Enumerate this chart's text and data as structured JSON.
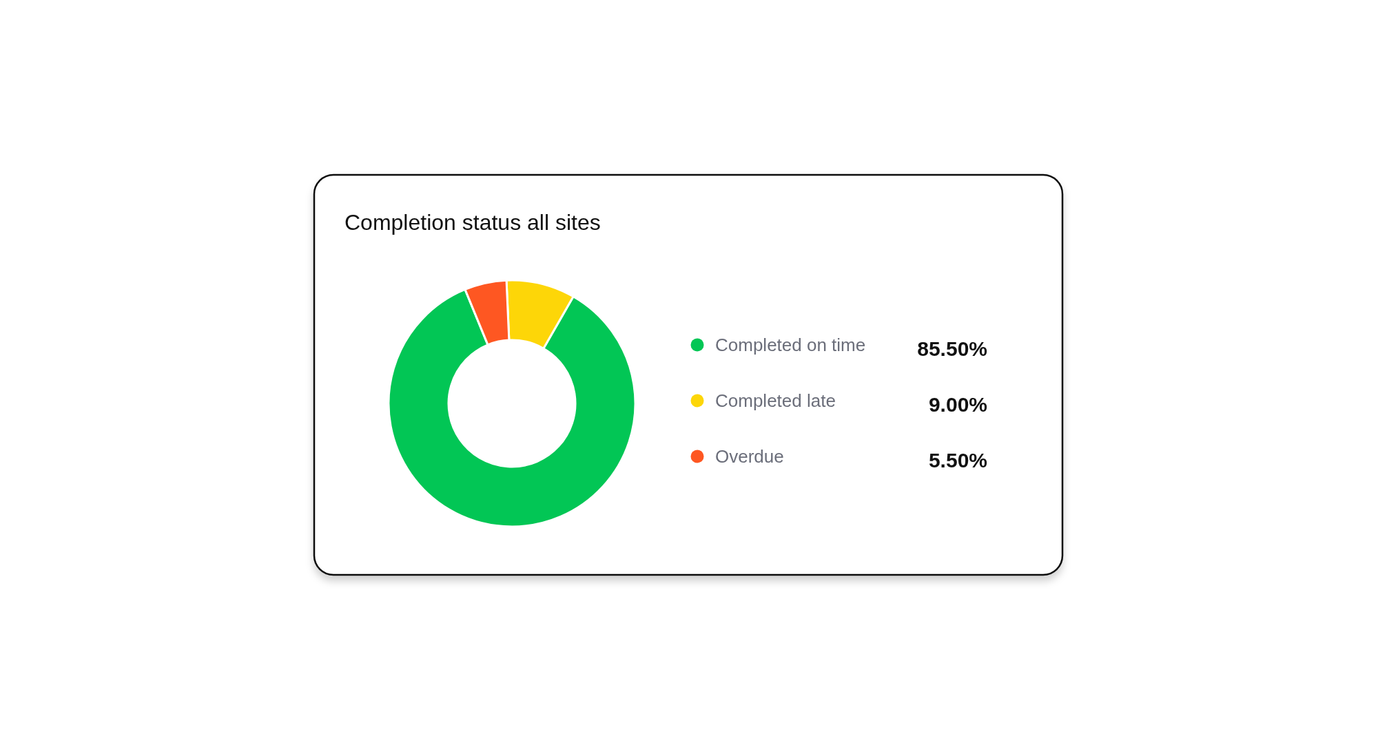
{
  "chart_data": {
    "type": "donut",
    "title": "Completion status all sites",
    "categories": [
      "Completed on time",
      "Completed late",
      "Overdue"
    ],
    "values": [
      85.5,
      9.0,
      5.5
    ],
    "colors": [
      "#02c655",
      "#fdd608",
      "#fe5722"
    ],
    "value_labels": [
      "85.50%",
      "9.00%",
      "5.50%"
    ],
    "legend": "right"
  }
}
